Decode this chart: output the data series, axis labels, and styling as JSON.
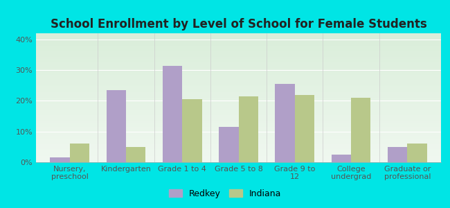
{
  "title": "School Enrollment by Level of School for Female Students",
  "categories": [
    "Nursery,\npreschool",
    "Kindergarten",
    "Grade 1 to 4",
    "Grade 5 to 8",
    "Grade 9 to\n12",
    "College\nundergrad",
    "Graduate or\nprofessional"
  ],
  "redkey_values": [
    1.5,
    23.5,
    31.5,
    11.5,
    25.5,
    2.5,
    5.0
  ],
  "indiana_values": [
    6.0,
    5.0,
    20.5,
    21.5,
    22.0,
    21.0,
    6.0
  ],
  "redkey_color": "#b09fc8",
  "indiana_color": "#b8c88a",
  "background_color": "#00e5e5",
  "plot_bg_top": "#daeeda",
  "plot_bg_bottom": "#f0f8f0",
  "ylim": [
    0,
    42
  ],
  "yticks": [
    0,
    10,
    20,
    30,
    40
  ],
  "ytick_labels": [
    "0%",
    "10%",
    "20%",
    "30%",
    "40%"
  ],
  "legend_labels": [
    "Redkey",
    "Indiana"
  ],
  "bar_width": 0.35,
  "title_fontsize": 12,
  "tick_fontsize": 8,
  "legend_fontsize": 9
}
